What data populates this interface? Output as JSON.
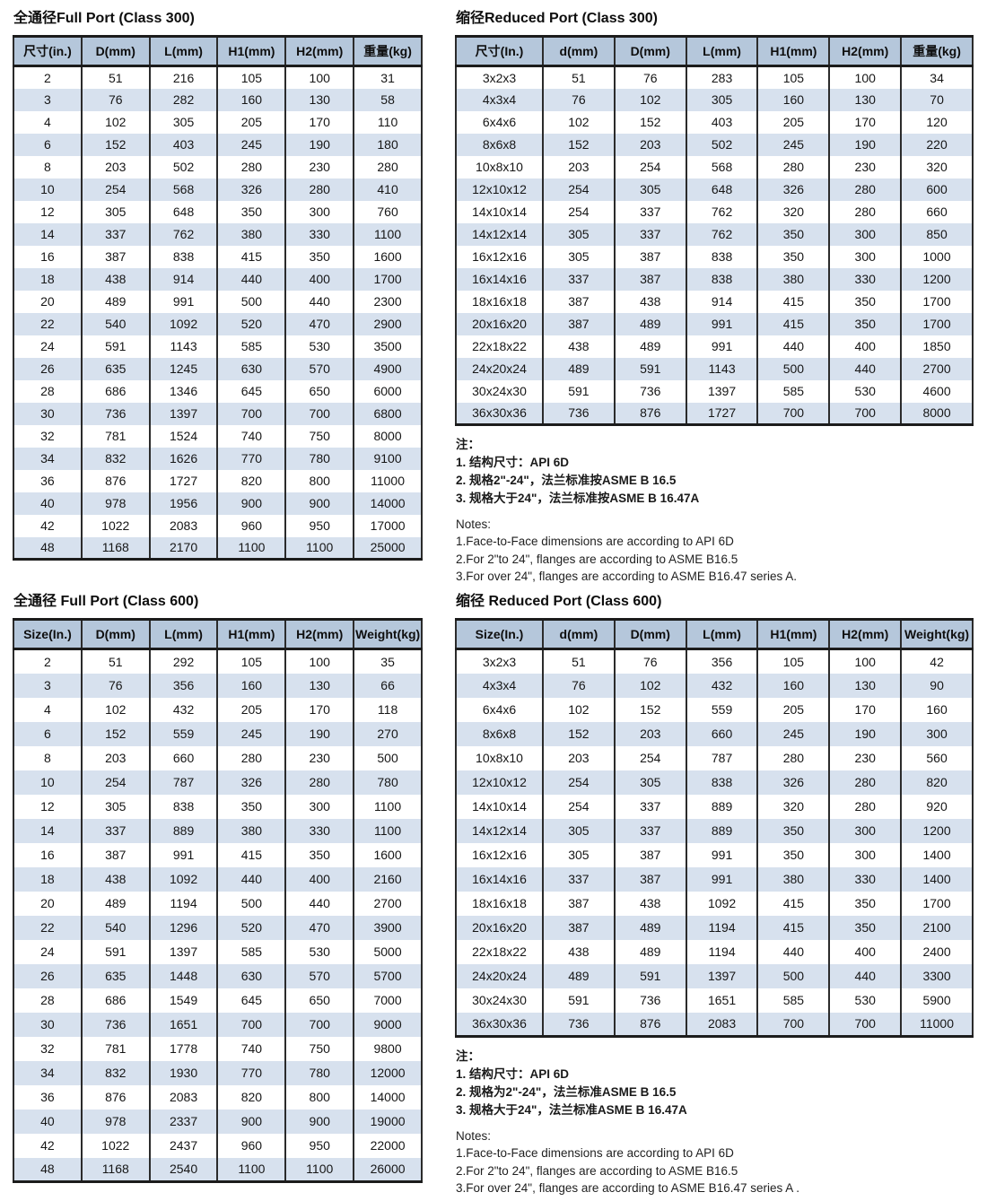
{
  "colors": {
    "header_bg": "#b5c7db",
    "stripe_bg": "#d7e1ee",
    "border_dark": "#1c1c1c",
    "text": "#141414"
  },
  "tables": [
    {
      "id": "full-port-class-300",
      "title": "全通径Full Port (Class 300)",
      "headers": [
        "尺寸(in.)",
        "D(mm)",
        "L(mm)",
        "H1(mm)",
        "H2(mm)",
        "重量(kg)"
      ],
      "rows": [
        [
          "2",
          "51",
          "216",
          "105",
          "100",
          "31"
        ],
        [
          "3",
          "76",
          "282",
          "160",
          "130",
          "58"
        ],
        [
          "4",
          "102",
          "305",
          "205",
          "170",
          "110"
        ],
        [
          "6",
          "152",
          "403",
          "245",
          "190",
          "180"
        ],
        [
          "8",
          "203",
          "502",
          "280",
          "230",
          "280"
        ],
        [
          "10",
          "254",
          "568",
          "326",
          "280",
          "410"
        ],
        [
          "12",
          "305",
          "648",
          "350",
          "300",
          "760"
        ],
        [
          "14",
          "337",
          "762",
          "380",
          "330",
          "1100"
        ],
        [
          "16",
          "387",
          "838",
          "415",
          "350",
          "1600"
        ],
        [
          "18",
          "438",
          "914",
          "440",
          "400",
          "1700"
        ],
        [
          "20",
          "489",
          "991",
          "500",
          "440",
          "2300"
        ],
        [
          "22",
          "540",
          "1092",
          "520",
          "470",
          "2900"
        ],
        [
          "24",
          "591",
          "1143",
          "585",
          "530",
          "3500"
        ],
        [
          "26",
          "635",
          "1245",
          "630",
          "570",
          "4900"
        ],
        [
          "28",
          "686",
          "1346",
          "645",
          "650",
          "6000"
        ],
        [
          "30",
          "736",
          "1397",
          "700",
          "700",
          "6800"
        ],
        [
          "32",
          "781",
          "1524",
          "740",
          "750",
          "8000"
        ],
        [
          "34",
          "832",
          "1626",
          "770",
          "780",
          "9100"
        ],
        [
          "36",
          "876",
          "1727",
          "820",
          "800",
          "11000"
        ],
        [
          "40",
          "978",
          "1956",
          "900",
          "900",
          "14000"
        ],
        [
          "42",
          "1022",
          "2083",
          "960",
          "950",
          "17000"
        ],
        [
          "48",
          "1168",
          "2170",
          "1100",
          "1100",
          "25000"
        ]
      ]
    },
    {
      "id": "reduced-port-class-300",
      "title": "缩径Reduced Port (Class 300)",
      "headers": [
        "尺寸(In.)",
        "d(mm)",
        "D(mm)",
        "L(mm)",
        "H1(mm)",
        "H2(mm)",
        "重量(kg)"
      ],
      "rows": [
        [
          "3x2x3",
          "51",
          "76",
          "283",
          "105",
          "100",
          "34"
        ],
        [
          "4x3x4",
          "76",
          "102",
          "305",
          "160",
          "130",
          "70"
        ],
        [
          "6x4x6",
          "102",
          "152",
          "403",
          "205",
          "170",
          "120"
        ],
        [
          "8x6x8",
          "152",
          "203",
          "502",
          "245",
          "190",
          "220"
        ],
        [
          "10x8x10",
          "203",
          "254",
          "568",
          "280",
          "230",
          "320"
        ],
        [
          "12x10x12",
          "254",
          "305",
          "648",
          "326",
          "280",
          "600"
        ],
        [
          "14x10x14",
          "254",
          "337",
          "762",
          "320",
          "280",
          "660"
        ],
        [
          "14x12x14",
          "305",
          "337",
          "762",
          "350",
          "300",
          "850"
        ],
        [
          "16x12x16",
          "305",
          "387",
          "838",
          "350",
          "300",
          "1000"
        ],
        [
          "16x14x16",
          "337",
          "387",
          "838",
          "380",
          "330",
          "1200"
        ],
        [
          "18x16x18",
          "387",
          "438",
          "914",
          "415",
          "350",
          "1700"
        ],
        [
          "20x16x20",
          "387",
          "489",
          "991",
          "415",
          "350",
          "1700"
        ],
        [
          "22x18x22",
          "438",
          "489",
          "991",
          "440",
          "400",
          "1850"
        ],
        [
          "24x20x24",
          "489",
          "591",
          "1143",
          "500",
          "440",
          "2700"
        ],
        [
          "30x24x30",
          "591",
          "736",
          "1397",
          "585",
          "530",
          "4600"
        ],
        [
          "36x30x36",
          "736",
          "876",
          "1727",
          "700",
          "700",
          "8000"
        ]
      ]
    },
    {
      "id": "full-port-class-600",
      "title": "全通径 Full Port (Class 600)",
      "headers": [
        "Size(In.)",
        "D(mm)",
        "L(mm)",
        "H1(mm)",
        "H2(mm)",
        "Weight(kg)"
      ],
      "rows": [
        [
          "2",
          "51",
          "292",
          "105",
          "100",
          "35"
        ],
        [
          "3",
          "76",
          "356",
          "160",
          "130",
          "66"
        ],
        [
          "4",
          "102",
          "432",
          "205",
          "170",
          "118"
        ],
        [
          "6",
          "152",
          "559",
          "245",
          "190",
          "270"
        ],
        [
          "8",
          "203",
          "660",
          "280",
          "230",
          "500"
        ],
        [
          "10",
          "254",
          "787",
          "326",
          "280",
          "780"
        ],
        [
          "12",
          "305",
          "838",
          "350",
          "300",
          "1100"
        ],
        [
          "14",
          "337",
          "889",
          "380",
          "330",
          "1100"
        ],
        [
          "16",
          "387",
          "991",
          "415",
          "350",
          "1600"
        ],
        [
          "18",
          "438",
          "1092",
          "440",
          "400",
          "2160"
        ],
        [
          "20",
          "489",
          "1194",
          "500",
          "440",
          "2700"
        ],
        [
          "22",
          "540",
          "1296",
          "520",
          "470",
          "3900"
        ],
        [
          "24",
          "591",
          "1397",
          "585",
          "530",
          "5000"
        ],
        [
          "26",
          "635",
          "1448",
          "630",
          "570",
          "5700"
        ],
        [
          "28",
          "686",
          "1549",
          "645",
          "650",
          "7000"
        ],
        [
          "30",
          "736",
          "1651",
          "700",
          "700",
          "9000"
        ],
        [
          "32",
          "781",
          "1778",
          "740",
          "750",
          "9800"
        ],
        [
          "34",
          "832",
          "1930",
          "770",
          "780",
          "12000"
        ],
        [
          "36",
          "876",
          "2083",
          "820",
          "800",
          "14000"
        ],
        [
          "40",
          "978",
          "2337",
          "900",
          "900",
          "19000"
        ],
        [
          "42",
          "1022",
          "2437",
          "960",
          "950",
          "22000"
        ],
        [
          "48",
          "1168",
          "2540",
          "1100",
          "1100",
          "26000"
        ]
      ]
    },
    {
      "id": "reduced-port-class-600",
      "title": "缩径 Reduced Port (Class 600)",
      "headers": [
        "Size(In.)",
        "d(mm)",
        "D(mm)",
        "L(mm)",
        "H1(mm)",
        "H2(mm)",
        "Weight(kg)"
      ],
      "rows": [
        [
          "3x2x3",
          "51",
          "76",
          "356",
          "105",
          "100",
          "42"
        ],
        [
          "4x3x4",
          "76",
          "102",
          "432",
          "160",
          "130",
          "90"
        ],
        [
          "6x4x6",
          "102",
          "152",
          "559",
          "205",
          "170",
          "160"
        ],
        [
          "8x6x8",
          "152",
          "203",
          "660",
          "245",
          "190",
          "300"
        ],
        [
          "10x8x10",
          "203",
          "254",
          "787",
          "280",
          "230",
          "560"
        ],
        [
          "12x10x12",
          "254",
          "305",
          "838",
          "326",
          "280",
          "820"
        ],
        [
          "14x10x14",
          "254",
          "337",
          "889",
          "320",
          "280",
          "920"
        ],
        [
          "14x12x14",
          "305",
          "337",
          "889",
          "350",
          "300",
          "1200"
        ],
        [
          "16x12x16",
          "305",
          "387",
          "991",
          "350",
          "300",
          "1400"
        ],
        [
          "16x14x16",
          "337",
          "387",
          "991",
          "380",
          "330",
          "1400"
        ],
        [
          "18x16x18",
          "387",
          "438",
          "1092",
          "415",
          "350",
          "1700"
        ],
        [
          "20x16x20",
          "387",
          "489",
          "1194",
          "415",
          "350",
          "2100"
        ],
        [
          "22x18x22",
          "438",
          "489",
          "1194",
          "440",
          "400",
          "2400"
        ],
        [
          "24x20x24",
          "489",
          "591",
          "1397",
          "500",
          "440",
          "3300"
        ],
        [
          "30x24x30",
          "591",
          "736",
          "1651",
          "585",
          "530",
          "5900"
        ],
        [
          "36x30x36",
          "736",
          "876",
          "2083",
          "700",
          "700",
          "11000"
        ]
      ]
    }
  ],
  "notes300": {
    "cn_label": "注：",
    "cn": [
      "1. 结构尺寸：API 6D",
      "2. 规格2\"-24\"，法兰标准按ASME B 16.5",
      "3. 规格大于24\"，法兰标准按ASME B 16.47A"
    ],
    "en_label": "Notes:",
    "en": [
      "1.Face-to-Face dimensions are according to API 6D",
      "2.For 2\"to 24\", flanges are according to ASME B16.5",
      "3.For over 24\", flanges are according to ASME B16.47 series A."
    ]
  },
  "notes600": {
    "cn_label": "注：",
    "cn": [
      "1. 结构尺寸：API 6D",
      "2. 规格为2\"-24\"，法兰标准ASME B 16.5",
      "3. 规格大于24\"，法兰标准ASME B 16.47A"
    ],
    "en_label": "Notes:",
    "en": [
      "1.Face-to-Face dimensions are according to API 6D",
      "2.For 2\"to 24\", flanges are according to ASME B16.5",
      "3.For over 24\", flanges are according to ASME B16.47 series A ."
    ]
  }
}
